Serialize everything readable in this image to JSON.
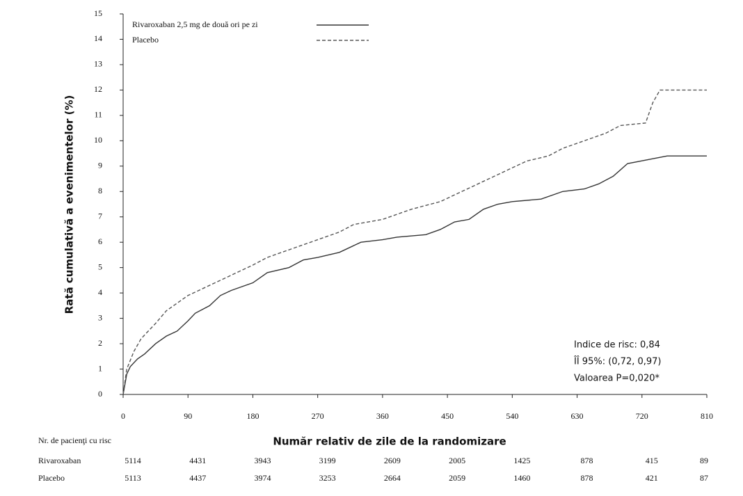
{
  "chart_data": {
    "type": "line",
    "y_label": "Rată cumulativă a evenimentelor (%)",
    "x_label": "Număr relativ de zile de la randomizare",
    "xlim": [
      0,
      810
    ],
    "xticks": [
      0,
      90,
      180,
      270,
      360,
      450,
      540,
      630,
      720,
      810
    ],
    "ylim": [
      0,
      15
    ],
    "yticks": [
      0,
      1,
      2,
      3,
      4,
      5,
      6,
      7,
      8,
      9,
      10,
      11,
      12,
      13,
      14,
      15
    ],
    "grid": false,
    "legend_position": "upper left",
    "series": [
      {
        "name": "Rivaroxaban 2,5 mg de două ori pe zi",
        "color": "#333333",
        "dash": "solid",
        "x": [
          0,
          5,
          10,
          20,
          30,
          45,
          60,
          75,
          90,
          100,
          120,
          135,
          150,
          180,
          200,
          230,
          250,
          270,
          300,
          330,
          360,
          380,
          420,
          440,
          460,
          480,
          500,
          520,
          540,
          580,
          610,
          640,
          660,
          680,
          700,
          755,
          810
        ],
        "values": [
          0,
          0.8,
          1.1,
          1.4,
          1.6,
          2.0,
          2.3,
          2.5,
          2.9,
          3.2,
          3.5,
          3.9,
          4.1,
          4.4,
          4.8,
          5.0,
          5.3,
          5.4,
          5.6,
          6.0,
          6.1,
          6.2,
          6.3,
          6.5,
          6.8,
          6.9,
          7.3,
          7.5,
          7.6,
          7.7,
          8.0,
          8.1,
          8.3,
          8.6,
          9.1,
          9.4,
          9.4
        ]
      },
      {
        "name": "Placebo",
        "color": "#555555",
        "dash": "dashed",
        "x": [
          0,
          5,
          15,
          25,
          45,
          60,
          75,
          90,
          120,
          150,
          180,
          200,
          240,
          270,
          300,
          320,
          360,
          400,
          440,
          470,
          500,
          530,
          560,
          590,
          610,
          640,
          670,
          690,
          725,
          735,
          745,
          810
        ],
        "values": [
          0,
          1.0,
          1.7,
          2.2,
          2.8,
          3.3,
          3.6,
          3.9,
          4.3,
          4.7,
          5.1,
          5.4,
          5.8,
          6.1,
          6.4,
          6.7,
          6.9,
          7.3,
          7.6,
          8.0,
          8.4,
          8.8,
          9.2,
          9.4,
          9.7,
          10.0,
          10.3,
          10.6,
          10.7,
          11.5,
          12.0,
          12.0
        ]
      }
    ],
    "annotations": [
      "Indice de risc: 0,84",
      "ÎÎ 95%: (0,72, 0,97)",
      "Valoarea P=0,020*"
    ],
    "risk_table": {
      "label": "Nr. de pacienţi cu risc",
      "rows": [
        {
          "name": "Rivaroxaban",
          "values": [
            5114,
            4431,
            3943,
            3199,
            2609,
            2005,
            1425,
            878,
            415,
            89
          ]
        },
        {
          "name": "Placebo",
          "values": [
            5113,
            4437,
            3974,
            3253,
            2664,
            2059,
            1460,
            878,
            421,
            87
          ]
        }
      ]
    }
  }
}
